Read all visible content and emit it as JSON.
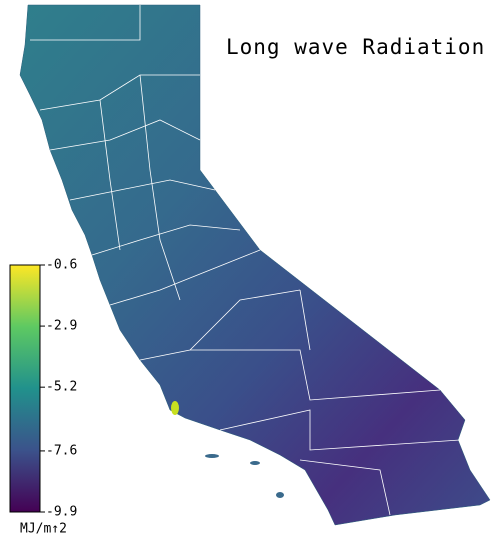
{
  "title": "Long wave Radiation",
  "colorbar": {
    "label": "MJ/m↑2",
    "range": [
      -9.9,
      -0.6
    ],
    "ticks": [
      -0.6,
      -2.9,
      -5.2,
      -7.6,
      -9.9
    ]
  }
}
